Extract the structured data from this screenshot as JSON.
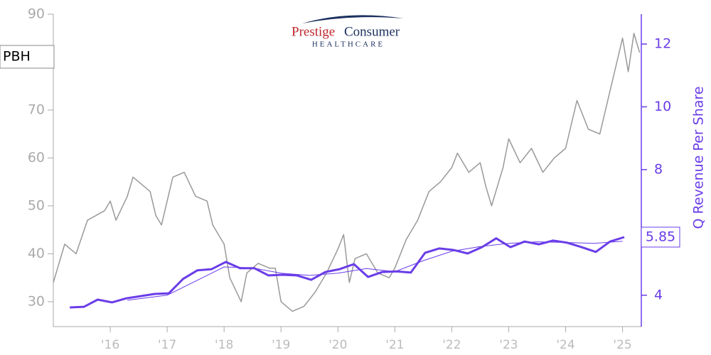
{
  "logo": {
    "brand": "Prestige",
    "brand2": "Consumer",
    "sub": "HEALTHCARE"
  },
  "chart_data": {
    "type": "line",
    "ticker": "PBH",
    "y2_label": "Q Revenue Per Share",
    "xlim": [
      2015.0,
      2025.33
    ],
    "xticks": [
      {
        "value": 2016,
        "label": "'16"
      },
      {
        "value": 2017,
        "label": "'17"
      },
      {
        "value": 2018,
        "label": "'18"
      },
      {
        "value": 2019,
        "label": "'19"
      },
      {
        "value": 2020,
        "label": "'20"
      },
      {
        "value": 2021,
        "label": "'21"
      },
      {
        "value": 2022,
        "label": "'22"
      },
      {
        "value": 2023,
        "label": "'23"
      },
      {
        "value": 2024,
        "label": "'24"
      },
      {
        "value": 2025,
        "label": "'25"
      }
    ],
    "ylim": [
      24.8,
      90
    ],
    "yticks": [
      30,
      40,
      50,
      60,
      70,
      90
    ],
    "y2lim": [
      3,
      12.95
    ],
    "y2ticks": [
      4,
      8,
      10,
      12
    ],
    "series": [
      {
        "color": "#999999",
        "width": 1.5,
        "x": [
          2015.0,
          2015.2,
          2015.4,
          2015.6,
          2015.9,
          2016.0,
          2016.1,
          2016.3,
          2016.4,
          2016.6,
          2016.7,
          2016.8,
          2016.9,
          2017.0,
          2017.1,
          2017.3,
          2017.5,
          2017.7,
          2017.8,
          2018.0,
          2018.1,
          2018.3,
          2018.4,
          2018.6,
          2018.8,
          2018.9,
          2019.0,
          2019.2,
          2019.4,
          2019.6,
          2019.8,
          2020.0,
          2020.1,
          2020.2,
          2020.3,
          2020.5,
          2020.7,
          2020.9,
          2021.0,
          2021.2,
          2021.4,
          2021.6,
          2021.8,
          2022.0,
          2022.1,
          2022.3,
          2022.5,
          2022.6,
          2022.7,
          2022.9,
          2023.0,
          2023.2,
          2023.4,
          2023.6,
          2023.8,
          2024.0,
          2024.2,
          2024.4,
          2024.6,
          2024.7,
          2024.9,
          2025.0,
          2025.1,
          2025.2,
          2025.3
        ],
        "values": [
          34,
          42,
          40,
          47,
          49,
          51,
          47,
          52,
          56,
          54,
          53,
          48,
          46,
          51,
          56,
          57,
          52,
          51,
          46,
          42,
          35,
          30,
          36,
          38,
          37,
          37,
          30,
          28,
          29,
          32,
          36,
          41,
          44,
          34,
          39,
          40,
          36,
          35,
          37,
          43,
          47,
          53,
          55,
          58,
          61,
          57,
          59,
          54,
          50,
          58,
          64,
          59,
          62,
          57,
          60,
          62,
          72,
          66,
          65,
          70,
          80,
          85,
          78,
          86,
          82
        ]
      },
      {
        "color": "#6a3de8",
        "width": 3,
        "axis": "y2",
        "x": [
          2015.29,
          2015.54,
          2015.78,
          2016.03,
          2016.28,
          2016.53,
          2016.78,
          2017.03,
          2017.28,
          2017.53,
          2017.78,
          2018.03,
          2018.28,
          2018.53,
          2018.78,
          2019.03,
          2019.28,
          2019.53,
          2019.78,
          2020.03,
          2020.28,
          2020.53,
          2020.78,
          2021.03,
          2021.28,
          2021.53,
          2021.78,
          2022.03,
          2022.28,
          2022.53,
          2022.78,
          2023.03,
          2023.28,
          2023.53,
          2023.78,
          2024.03,
          2024.28,
          2024.53,
          2024.78,
          2025.03
        ],
        "values": [
          3.61,
          3.63,
          3.86,
          3.77,
          3.9,
          3.97,
          4.04,
          4.06,
          4.52,
          4.79,
          4.83,
          5.06,
          4.86,
          4.86,
          4.63,
          4.65,
          4.63,
          4.49,
          4.74,
          4.83,
          4.99,
          4.58,
          4.74,
          4.76,
          4.72,
          5.35,
          5.49,
          5.44,
          5.33,
          5.53,
          5.81,
          5.53,
          5.71,
          5.62,
          5.74,
          5.67,
          5.53,
          5.38,
          5.71,
          5.85
        ]
      },
      {
        "color": "#6a3de8",
        "width": 1,
        "axis": "y2",
        "x": [
          2016.3,
          2017.0,
          2018.0,
          2018.5,
          2019.0,
          2019.5,
          2020.0,
          2020.5,
          2021.0,
          2021.5,
          2022.0,
          2022.5,
          2023.0,
          2023.5,
          2024.0,
          2024.5,
          2025.0
        ],
        "values": [
          3.84,
          4.0,
          4.9,
          4.87,
          4.7,
          4.63,
          4.7,
          4.85,
          4.75,
          5.1,
          5.4,
          5.55,
          5.65,
          5.7,
          5.68,
          5.65,
          5.72
        ]
      }
    ]
  }
}
